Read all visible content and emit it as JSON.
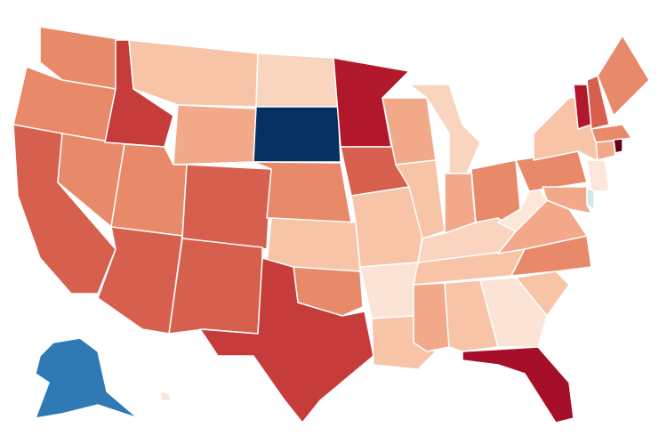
{
  "map": {
    "regions": [
      {
        "fill": "#e8896a"
      },
      {
        "fill": "#e8896a"
      },
      {
        "fill": "#d6604d"
      },
      {
        "fill": "#e8896a"
      },
      {
        "fill": "#c63c3a"
      },
      {
        "fill": "#f7c4a8"
      },
      {
        "fill": "#f2a98a"
      },
      {
        "fill": "#e8896a"
      },
      {
        "fill": "#d6604d"
      },
      {
        "fill": "#d6604d"
      },
      {
        "fill": "#d6604d"
      },
      {
        "fill": "#f9d5c0"
      },
      {
        "fill": "#053061"
      },
      {
        "fill": "#e8896a"
      },
      {
        "fill": "#f7c4a8"
      },
      {
        "fill": "#e8896a"
      },
      {
        "fill": "#c63c3a"
      },
      {
        "fill": "#b2182b"
      },
      {
        "fill": "#d6604d"
      },
      {
        "fill": "#f7c4a8"
      },
      {
        "fill": "#fbe3d6"
      },
      {
        "fill": "#f7c4a8"
      },
      {
        "fill": "#f2a98a"
      },
      {
        "fill": "#f7c4a8"
      },
      {
        "fill": "#f9d5c0"
      },
      {
        "fill": "#f2a98a"
      },
      {
        "fill": "#e8896a"
      },
      {
        "fill": "#f9d5c0"
      },
      {
        "fill": "#f7c4a8"
      },
      {
        "fill": "#f2a98a"
      },
      {
        "fill": "#f7c4a8"
      },
      {
        "fill": "#fbe3d6"
      },
      {
        "fill": "#a50f29"
      },
      {
        "fill": "#f7c4a8"
      },
      {
        "fill": "#e8896a"
      },
      {
        "fill": "#f2a98a"
      },
      {
        "fill": "#fde6da"
      },
      {
        "fill": "#e8896a"
      },
      {
        "fill": "#f7c4a8"
      },
      {
        "fill": "#b2182b"
      },
      {
        "fill": "#d6604d"
      },
      {
        "fill": "#e8896a"
      },
      {
        "fill": "#e8896a"
      },
      {
        "fill": "#f2a98a"
      },
      {
        "fill": "#67001f"
      },
      {
        "fill": "#fde6da"
      },
      {
        "fill": "#d1e5f0"
      },
      {
        "fill": "#f2a98a"
      },
      {
        "fill": "#2f79b5"
      },
      {
        "fill": "#fbe3d6"
      }
    ]
  }
}
